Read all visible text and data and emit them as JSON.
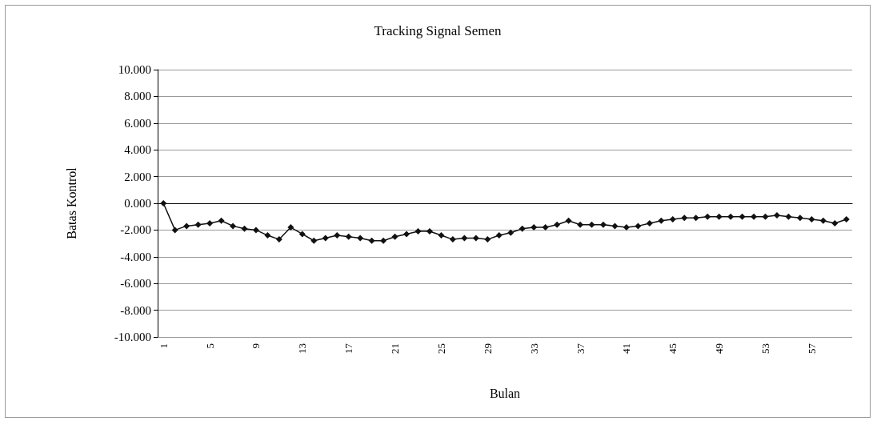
{
  "chart_data": {
    "type": "line",
    "title": "Tracking Signal Semen",
    "xlabel": "Bulan",
    "ylabel": "Batas Kontrol",
    "categories": [
      "1",
      null,
      null,
      null,
      "5",
      null,
      null,
      null,
      "9",
      null,
      null,
      null,
      "13",
      null,
      null,
      null,
      "17",
      null,
      null,
      null,
      "21",
      null,
      null,
      null,
      "25",
      null,
      null,
      null,
      "29",
      null,
      null,
      null,
      "33",
      null,
      null,
      null,
      "37",
      null,
      null,
      null,
      "41",
      null,
      null,
      null,
      "45",
      null,
      null,
      null,
      "49",
      null,
      null,
      null,
      "53",
      null,
      null,
      null,
      "57",
      null,
      null,
      null
    ],
    "series": [
      {
        "color": "#111111",
        "values": [
          0,
          -2.0,
          -1.7,
          -1.6,
          -1.5,
          -1.3,
          -1.7,
          -1.9,
          -2.0,
          -2.4,
          -2.7,
          -1.8,
          -2.3,
          -2.8,
          -2.6,
          -2.4,
          -2.5,
          -2.6,
          -2.8,
          -2.8,
          -2.5,
          -2.3,
          -2.1,
          -2.1,
          -2.4,
          -2.7,
          -2.6,
          -2.6,
          -2.7,
          -2.4,
          -2.2,
          -1.9,
          -1.8,
          -1.8,
          -1.6,
          -1.3,
          -1.6,
          -1.6,
          -1.6,
          -1.7,
          -1.8,
          -1.7,
          -1.5,
          -1.3,
          -1.2,
          -1.1,
          -1.1,
          -1.0,
          -1.0,
          -1.0,
          -1.0,
          -1.0,
          -1.0,
          -0.9,
          -1.0,
          -1.1,
          -1.2,
          -1.3,
          -1.5,
          -1.2
        ]
      }
    ],
    "ylim": [
      -10,
      10
    ],
    "yticks": [
      {
        "value": -10,
        "label": "-10.000"
      },
      {
        "value": -8,
        "label": "-8.000"
      },
      {
        "value": -6,
        "label": "-6.000"
      },
      {
        "value": -4,
        "label": "-4.000"
      },
      {
        "value": -2,
        "label": "-2.000"
      },
      {
        "value": 0,
        "label": "0.000"
      },
      {
        "value": 2,
        "label": "2.000"
      },
      {
        "value": 4,
        "label": "4.000"
      },
      {
        "value": 6,
        "label": "6.000"
      },
      {
        "value": 8,
        "label": "8.000"
      },
      {
        "value": 10,
        "label": "10.000"
      }
    ],
    "grid": "y",
    "marker": "diamond",
    "line_style": "solid"
  }
}
